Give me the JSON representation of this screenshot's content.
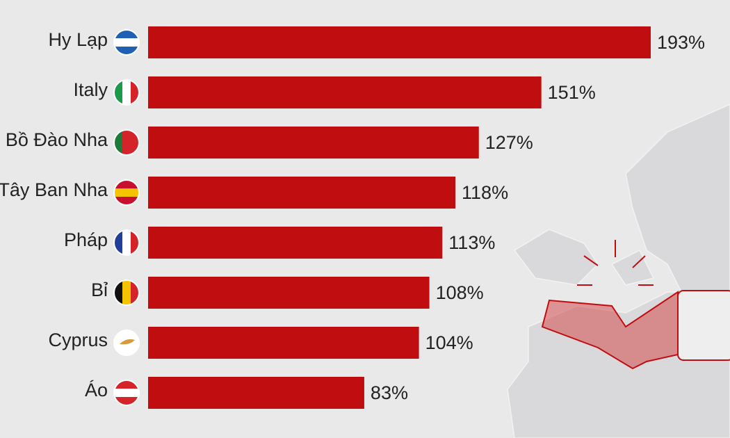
{
  "chart_data": {
    "type": "bar",
    "orientation": "horizontal",
    "categories": [
      "Hy Lạp",
      "Italy",
      "Bồ Đào Nha",
      "Tây Ban Nha",
      "Pháp",
      "Bỉ",
      "Cyprus",
      "Áo"
    ],
    "values": [
      193,
      151,
      127,
      118,
      113,
      108,
      104,
      83
    ],
    "value_labels": [
      "193%",
      "151%",
      "127%",
      "118%",
      "113%",
      "108%",
      "104%",
      "83%"
    ],
    "color": "#c00d10"
  }
}
